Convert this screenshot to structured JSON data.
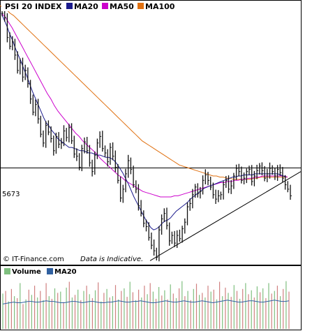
{
  "chart_data": {
    "type": "line",
    "title": "PSI 20 INDEX",
    "subtitle": "",
    "xlabel": "",
    "ylabel": "",
    "ylim": [
      4800,
      7150
    ],
    "ticks": [
      5673
    ],
    "hline": 5673,
    "grid": false,
    "legend_placement": "top-left",
    "colors": {
      "price": "#111111",
      "ma20": "#1a1a8c",
      "ma50": "#cc00cc",
      "ma100": "#e07010",
      "trendline": "#000000",
      "vol_up": "#7fbf7f",
      "vol_down": "#d08080",
      "vol_ma": "#3060a0"
    },
    "legend": [
      {
        "label": "MA20",
        "color": "#1a1a8c"
      },
      {
        "label": "MA50",
        "color": "#cc00cc"
      },
      {
        "label": "MA100",
        "color": "#e07010"
      }
    ],
    "price": [
      7080,
      7040,
      6860,
      6780,
      6820,
      6700,
      6560,
      6630,
      6500,
      6560,
      6440,
      6300,
      6180,
      6250,
      6120,
      5980,
      5900,
      6060,
      6000,
      5940,
      5830,
      5960,
      5890,
      5900,
      6010,
      5950,
      6040,
      5920,
      5800,
      5780,
      5680,
      5850,
      5910,
      5830,
      5720,
      5640,
      5790,
      5900,
      5960,
      5850,
      5810,
      5730,
      5860,
      5780,
      5680,
      5560,
      5400,
      5480,
      5620,
      5740,
      5660,
      5520,
      5480,
      5330,
      5260,
      5170,
      5140,
      5040,
      4970,
      4920,
      4860,
      5110,
      5210,
      5260,
      5150,
      5010,
      5060,
      4990,
      5060,
      5030,
      5120,
      5180,
      5320,
      5350,
      5430,
      5500,
      5440,
      5460,
      5560,
      5610,
      5560,
      5500,
      5430,
      5390,
      5420,
      5430,
      5520,
      5560,
      5480,
      5510,
      5600,
      5670,
      5640,
      5560,
      5580,
      5640,
      5660,
      5550,
      5600,
      5650,
      5690,
      5650,
      5580,
      5620,
      5670,
      5640,
      5600,
      5660,
      5630,
      5580,
      5520,
      5480,
      5420
    ],
    "ma20": [
      7080,
      7020,
      6960,
      6890,
      6830,
      6760,
      6700,
      6640,
      6570,
      6510,
      6440,
      6370,
      6310,
      6250,
      6190,
      6130,
      6080,
      6050,
      6010,
      5980,
      5940,
      5920,
      5900,
      5880,
      5860,
      5860,
      5850,
      5840,
      5830,
      5830,
      5820,
      5810,
      5810,
      5800,
      5790,
      5790,
      5780,
      5770,
      5770,
      5760,
      5740,
      5710,
      5670,
      5630,
      5580,
      5530,
      5470,
      5410,
      5360,
      5310,
      5260,
      5210,
      5170,
      5130,
      5110,
      5120,
      5140,
      5170,
      5190,
      5200,
      5220,
      5250,
      5280,
      5300,
      5320,
      5340,
      5360,
      5390,
      5410,
      5430,
      5450,
      5470,
      5490,
      5500,
      5510,
      5520,
      5530,
      5540,
      5550,
      5560,
      5570,
      5580,
      5590,
      5590,
      5600,
      5600,
      5610,
      5610,
      5610,
      5610,
      5620,
      5620,
      5620,
      5620,
      5620,
      5620,
      5620,
      5620,
      5620,
      5610,
      5600,
      5590
    ],
    "ma50": [
      7080,
      7050,
      7000,
      6950,
      6890,
      6830,
      6770,
      6710,
      6650,
      6590,
      6530,
      6470,
      6410,
      6350,
      6300,
      6240,
      6190,
      6150,
      6110,
      6070,
      6030,
      5990,
      5960,
      5920,
      5890,
      5860,
      5830,
      5800,
      5760,
      5730,
      5700,
      5670,
      5640,
      5610,
      5590,
      5560,
      5540,
      5520,
      5500,
      5480,
      5460,
      5450,
      5440,
      5430,
      5420,
      5410,
      5410,
      5410,
      5410,
      5420,
      5420,
      5430,
      5440,
      5450,
      5460,
      5470,
      5480,
      5490,
      5500,
      5510,
      5520,
      5530,
      5540,
      5540,
      5550,
      5550,
      5560,
      5560,
      5570,
      5570,
      5580,
      5580,
      5590,
      5590,
      5600,
      5600,
      5600,
      5600,
      5600,
      5600,
      5600,
      5590
    ],
    "ma100": [
      7150,
      7130,
      7110,
      7080,
      7060,
      7030,
      7000,
      6970,
      6940,
      6910,
      6880,
      6850,
      6820,
      6790,
      6760,
      6730,
      6700,
      6670,
      6640,
      6610,
      6580,
      6550,
      6520,
      6490,
      6460,
      6430,
      6400,
      6370,
      6340,
      6310,
      6280,
      6250,
      6220,
      6190,
      6160,
      6130,
      6100,
      6070,
      6040,
      6010,
      5980,
      5950,
      5920,
      5900,
      5880,
      5860,
      5840,
      5820,
      5800,
      5780,
      5760,
      5740,
      5720,
      5700,
      5690,
      5680,
      5670,
      5660,
      5650,
      5640,
      5630,
      5620,
      5610,
      5600,
      5600,
      5590,
      5590,
      5580,
      5580,
      5570,
      5570,
      5570,
      5570,
      5570,
      5570,
      5580,
      5580,
      5590,
      5590,
      5590,
      5590,
      5590,
      5590,
      5590,
      5590,
      5590
    ],
    "trendline": {
      "x": [
        0,
        1
      ],
      "y": [
        4830,
        5640
      ]
    },
    "volume": [
      54,
      58,
      42,
      61,
      50,
      47,
      70,
      38,
      45,
      60,
      52,
      66,
      48,
      58,
      44,
      70,
      50,
      46,
      62,
      55,
      57,
      41,
      63,
      72,
      48,
      52,
      60,
      44,
      58,
      66,
      53,
      47,
      59,
      71,
      42,
      55,
      61,
      48,
      50,
      67,
      45,
      58,
      62,
      49,
      72,
      56,
      44,
      60,
      48,
      66,
      53,
      70,
      57,
      46,
      64,
      51,
      59,
      45,
      68,
      54,
      47,
      62,
      73,
      50,
      58,
      44,
      61,
      69,
      52,
      55,
      48,
      66,
      57,
      60,
      45,
      72,
      50,
      63,
      55,
      49,
      67,
      58,
      46,
      61,
      70,
      53,
      59,
      48,
      65,
      56,
      62,
      47,
      70,
      54,
      58,
      66,
      50,
      61,
      73,
      57
    ],
    "volume_ma": [
      38,
      39,
      40,
      41,
      40,
      40,
      41,
      42,
      42,
      41,
      41,
      42,
      43,
      42,
      42,
      41,
      40,
      40,
      41,
      42,
      42,
      41,
      40,
      41,
      42,
      42,
      41,
      40,
      40,
      41,
      41,
      42,
      43,
      42,
      41,
      41,
      42,
      42,
      43,
      42,
      41,
      40,
      40,
      41,
      42,
      43,
      42,
      41,
      41,
      42,
      43,
      42,
      41,
      41,
      42,
      43,
      42,
      41,
      40,
      41,
      42,
      43,
      44,
      43,
      42,
      41,
      41,
      42,
      43,
      43,
      42,
      41,
      41,
      42,
      43,
      44,
      43,
      42,
      42,
      43
    ]
  },
  "labels": {
    "price_legend_title": "PSI 20 INDEX",
    "ma20": "MA20",
    "ma50": "MA50",
    "ma100": "MA100",
    "level": "5673",
    "copyright": "© IT-Finance.com",
    "indicative": "Data is Indicative.",
    "volume_legend_title": "Volume",
    "volume_ma20": "MA20"
  }
}
